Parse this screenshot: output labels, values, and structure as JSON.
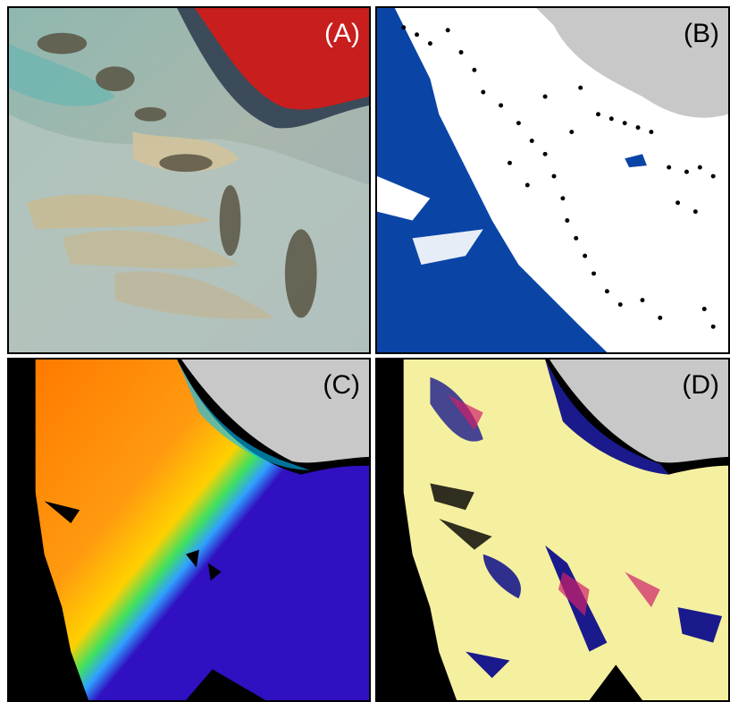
{
  "panels": {
    "a": {
      "label": "(A)"
    },
    "b": {
      "label": "(B)"
    },
    "c": {
      "label": "(C)"
    },
    "d": {
      "label": "(D)"
    }
  },
  "colors": {
    "water_teal": "#7fb3ad",
    "sand": "#c9b98f",
    "land_red": "#c81e1e",
    "mask_blue": "#0a45a6",
    "nodata_gray": "#c8c8c8",
    "nodata_black": "#000000",
    "heat_orange": "#ff8c00",
    "cream": "#f5f0a0",
    "navy": "#1a1a8c"
  },
  "icons": [
    "satellite-rgb-image",
    "water-mask-map",
    "elevation-colormap",
    "change-heatmap"
  ]
}
